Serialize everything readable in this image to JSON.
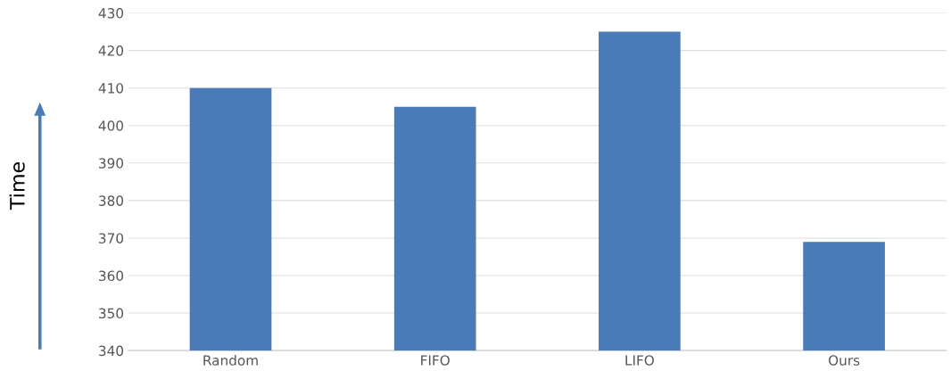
{
  "chart_data": {
    "type": "bar",
    "ylabel": "Time",
    "categories": [
      "Random",
      "FIFO",
      "LIFO",
      "Ours"
    ],
    "values": [
      410,
      405,
      425,
      369
    ],
    "color": "#4a7bb7",
    "ylim": [
      340,
      430
    ],
    "yticks": [
      340,
      350,
      360,
      370,
      380,
      390,
      400,
      410,
      420,
      430
    ],
    "grid": "y"
  }
}
